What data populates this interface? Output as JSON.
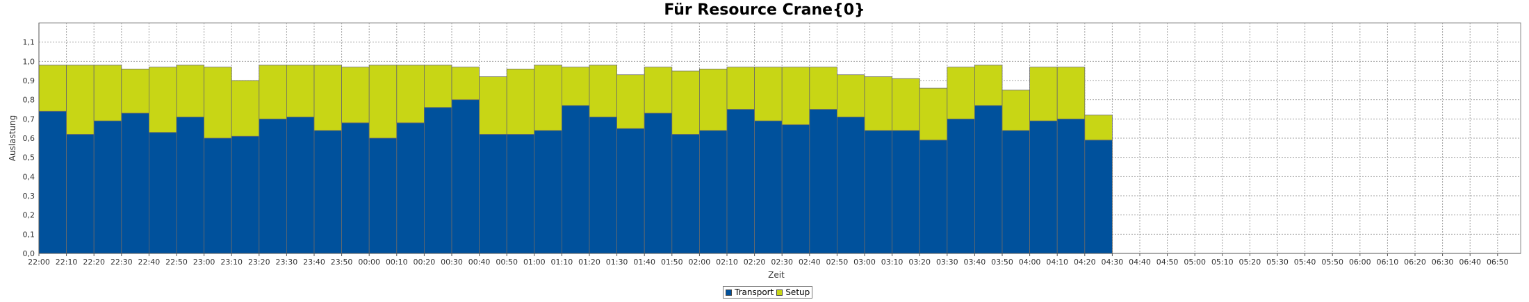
{
  "chart_data": {
    "type": "bar",
    "title": "Für Resource Crane{0}",
    "xlabel": "Zeit",
    "ylabel": "Auslastung",
    "ylim": [
      0,
      1.2
    ],
    "yticks": [
      "0,0",
      "0,1",
      "0,2",
      "0,3",
      "0,4",
      "0,5",
      "0,6",
      "0,7",
      "0,8",
      "0,9",
      "1,0",
      "1,1"
    ],
    "xticks": [
      "22:00",
      "22:10",
      "22:20",
      "22:30",
      "22:40",
      "22:50",
      "23:00",
      "23:10",
      "23:20",
      "23:30",
      "23:40",
      "23:50",
      "00:00",
      "00:10",
      "00:20",
      "00:30",
      "00:40",
      "00:50",
      "01:00",
      "01:10",
      "01:20",
      "01:30",
      "01:40",
      "01:50",
      "02:00",
      "02:10",
      "02:20",
      "02:30",
      "02:40",
      "02:50",
      "03:00",
      "03:10",
      "03:20",
      "03:30",
      "03:40",
      "03:50",
      "04:00",
      "04:10",
      "04:20",
      "04:30",
      "04:40",
      "04:50",
      "05:00",
      "05:10",
      "05:20",
      "05:30",
      "05:40",
      "05:50",
      "06:00",
      "06:10",
      "06:20",
      "06:30",
      "06:40",
      "06:50"
    ],
    "grid": true,
    "stacked": true,
    "legend_position": "bottom-center",
    "series": [
      {
        "name": "Transport",
        "color": "#00519c",
        "values": [
          0.74,
          0.62,
          0.69,
          0.73,
          0.63,
          0.71,
          0.6,
          0.61,
          0.7,
          0.71,
          0.64,
          0.68,
          0.6,
          0.68,
          0.76,
          0.8,
          0.62,
          0.62,
          0.64,
          0.77,
          0.71,
          0.65,
          0.73,
          0.62,
          0.64,
          0.75,
          0.69,
          0.67,
          0.75,
          0.71,
          0.64,
          0.64,
          0.59,
          0.7,
          0.77,
          0.64,
          0.69,
          0.7,
          0.59
        ]
      },
      {
        "name": "Setup",
        "color": "#c8d615",
        "values": [
          0.24,
          0.36,
          0.29,
          0.23,
          0.34,
          0.27,
          0.37,
          0.29,
          0.28,
          0.27,
          0.34,
          0.29,
          0.38,
          0.3,
          0.22,
          0.17,
          0.3,
          0.34,
          0.34,
          0.2,
          0.27,
          0.28,
          0.24,
          0.33,
          0.32,
          0.22,
          0.28,
          0.3,
          0.22,
          0.22,
          0.28,
          0.27,
          0.27,
          0.27,
          0.21,
          0.21,
          0.28,
          0.27,
          0.13
        ]
      }
    ]
  }
}
